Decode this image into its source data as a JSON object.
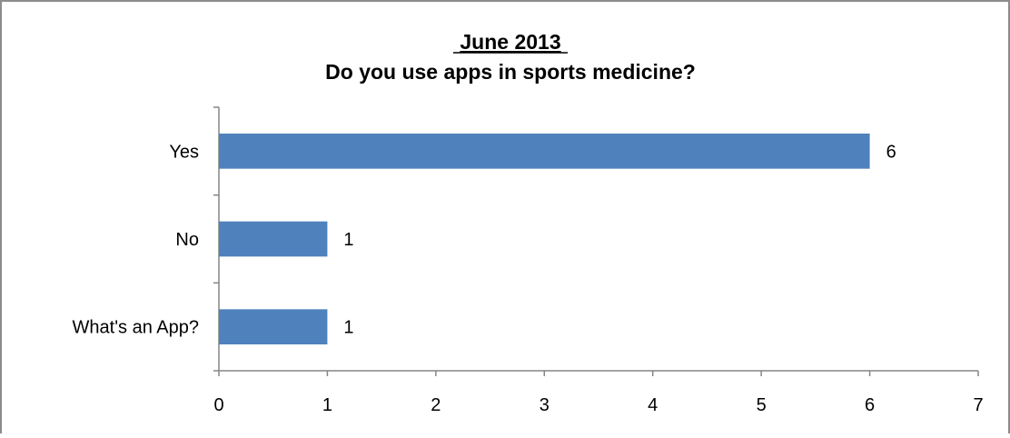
{
  "chart_data": {
    "type": "bar",
    "orientation": "horizontal",
    "title_line1": "June 2013",
    "title_line2": "Do you use apps in sports medicine?",
    "categories": [
      "Yes",
      "No",
      "What's an App?"
    ],
    "values": [
      6,
      1,
      1
    ],
    "xlim": [
      0,
      7
    ],
    "x_ticks": [
      "0",
      "1",
      "2",
      "3",
      "4",
      "5",
      "6",
      "7"
    ],
    "data_labels": [
      "6",
      "1",
      "1"
    ],
    "grid": false,
    "legend": "none",
    "bar_color": "#4F81BD"
  }
}
